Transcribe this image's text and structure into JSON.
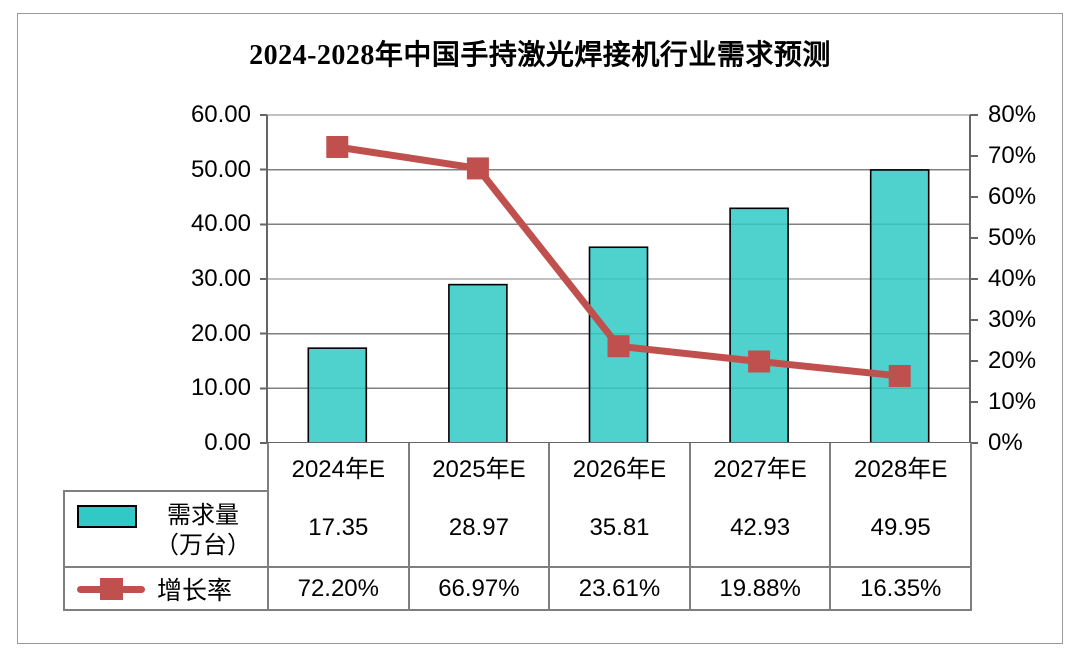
{
  "title": "2024-2028年中国手持激光焊接机行业需求预测",
  "chart_data": {
    "type": "combo",
    "title": "2024-2028年中国手持激光焊接机行业需求预测",
    "categories": [
      "2024年E",
      "2025年E",
      "2026年E",
      "2027年E",
      "2028年E"
    ],
    "series": [
      {
        "name": "需求量（万台）",
        "legend_lines": [
          "需求量",
          "（万台）"
        ],
        "chart_type": "bar",
        "axis": "left",
        "values": [
          17.35,
          28.97,
          35.81,
          42.93,
          49.95
        ],
        "value_labels": [
          "17.35",
          "28.97",
          "35.81",
          "42.93",
          "49.95"
        ],
        "color": "#4ED0CE"
      },
      {
        "name": "增长率",
        "legend_lines": [
          "增长率"
        ],
        "chart_type": "line",
        "axis": "right",
        "values": [
          72.2,
          66.97,
          23.61,
          19.88,
          16.35
        ],
        "value_labels": [
          "72.20%",
          "66.97%",
          "23.61%",
          "19.88%",
          "16.35%"
        ],
        "color": "#C0504D"
      }
    ],
    "left_axis": {
      "min": 0,
      "max": 60,
      "step": 10,
      "labels": [
        "0.00",
        "10.00",
        "20.00",
        "30.00",
        "40.00",
        "50.00",
        "60.00"
      ]
    },
    "right_axis": {
      "min": 0,
      "max": 80,
      "step": 10,
      "labels": [
        "0%",
        "10%",
        "20%",
        "30%",
        "40%",
        "50%",
        "60%",
        "70%",
        "80%"
      ]
    },
    "grid": true,
    "legend_position": "data-table-left"
  },
  "colors": {
    "bar_fill": "#30C9C6",
    "bar_border": "#000000",
    "line": "#C0504D",
    "grid": "#808080",
    "axis": "#666666",
    "table_border": "#7F7F7F",
    "frame": "#999999",
    "background": "#FFFFFF",
    "text": "#000000"
  }
}
